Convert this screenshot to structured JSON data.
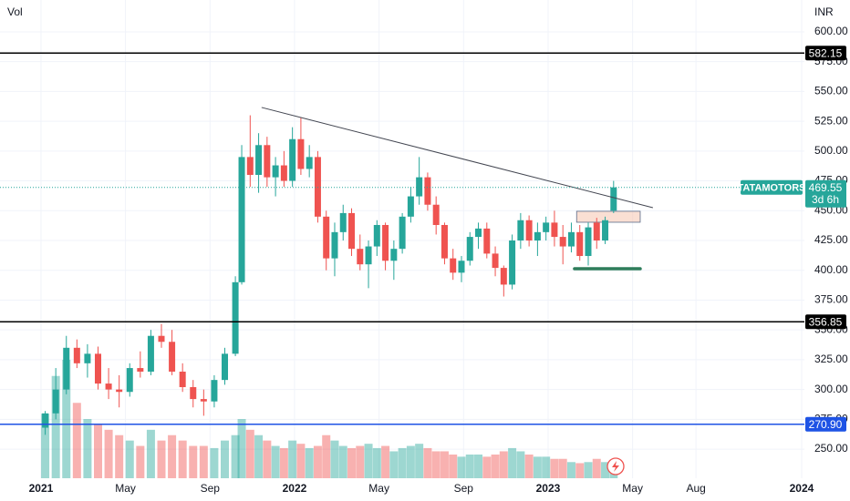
{
  "chart_data": {
    "type": "candlestick",
    "volume_label": "Vol",
    "currency": "INR",
    "symbol": "TATAMOTORS",
    "countdown": "3d 6h",
    "last_price": {
      "value": 469.55,
      "label": "469.55"
    },
    "up_color": "#26a69a",
    "down_color": "#ef5350",
    "grid": true,
    "xlim": [
      -1.94,
      36.13
    ],
    "ylim": [
      225.6,
      626.7
    ],
    "xticks": [
      {
        "value": 0,
        "label": "2021"
      },
      {
        "value": 4,
        "label": "May"
      },
      {
        "value": 8,
        "label": "Sep"
      },
      {
        "value": 12,
        "label": "2022"
      },
      {
        "value": 16,
        "label": "May"
      },
      {
        "value": 20,
        "label": "Sep"
      },
      {
        "value": 24,
        "label": "2023"
      },
      {
        "value": 28,
        "label": "May"
      },
      {
        "value": 31,
        "label": "Aug"
      },
      {
        "value": 36,
        "label": "2024"
      }
    ],
    "yticks": [
      {
        "value": 600,
        "label": "600.00"
      },
      {
        "value": 575,
        "label": "575.00"
      },
      {
        "value": 550,
        "label": "550.00"
      },
      {
        "value": 525,
        "label": "525.00"
      },
      {
        "value": 500,
        "label": "500.00"
      },
      {
        "value": 475,
        "label": "475.00"
      },
      {
        "value": 450,
        "label": "450.00"
      },
      {
        "value": 425,
        "label": "425.00"
      },
      {
        "value": 400,
        "label": "400.00"
      },
      {
        "value": 375,
        "label": "375.00"
      },
      {
        "value": 350,
        "label": "350.00"
      },
      {
        "value": 325,
        "label": "325.00"
      },
      {
        "value": 300,
        "label": "300.00"
      },
      {
        "value": 275,
        "label": "275.00"
      },
      {
        "value": 250,
        "label": "250.00"
      }
    ],
    "levels": [
      {
        "value": 582.15,
        "label": "582.15",
        "color": "#000000"
      },
      {
        "value": 356.85,
        "label": "356.85",
        "color": "#000000"
      },
      {
        "value": 270.9,
        "label": "270.90",
        "color": "#1e53e5"
      }
    ],
    "trendline": {
      "x": [
        10.44,
        28.96
      ],
      "y": [
        536.6,
        452.5
      ],
      "color": "#434651"
    },
    "support": {
      "x": [
        25.25,
        28.36
      ],
      "y": [
        401.3,
        401.3
      ],
      "color": "#2e7d5b"
    },
    "zone": {
      "x": [
        25.35,
        28.36
      ],
      "y": [
        449.5,
        440.3
      ],
      "color": "#f7c9b5"
    },
    "x": [
      0.2,
      0.7,
      1.2,
      1.7,
      2.2,
      2.7,
      3.2,
      3.7,
      4.2,
      4.7,
      5.2,
      5.7,
      6.2,
      6.7,
      7.2,
      7.7,
      8.2,
      8.7,
      9.2,
      9.5,
      9.9,
      10.3,
      10.7,
      11.1,
      11.5,
      11.9,
      12.3,
      12.7,
      13.1,
      13.5,
      13.9,
      14.3,
      14.7,
      15.1,
      15.5,
      15.9,
      16.3,
      16.7,
      17.1,
      17.5,
      17.9,
      18.3,
      18.7,
      19.1,
      19.5,
      19.9,
      20.3,
      20.7,
      21.1,
      21.5,
      21.9,
      22.3,
      22.7,
      23.1,
      23.5,
      23.9,
      24.3,
      24.7,
      25.1,
      25.5,
      25.9,
      26.3,
      26.7,
      27.1
    ],
    "open": [
      268,
      280,
      300,
      335,
      322,
      330,
      305,
      300,
      298,
      318,
      315,
      345,
      340,
      315,
      302,
      292,
      290,
      308,
      330,
      390,
      495,
      480,
      505,
      478,
      488,
      475,
      510,
      485,
      495,
      445,
      410,
      432,
      448,
      418,
      405,
      420,
      438,
      408,
      418,
      445,
      462,
      478,
      455,
      438,
      410,
      398,
      408,
      428,
      435,
      414,
      402,
      388,
      425,
      442,
      425,
      432,
      440,
      428,
      420,
      432,
      412,
      440,
      425,
      450
    ],
    "high": [
      282,
      318,
      345,
      342,
      338,
      336,
      318,
      312,
      322,
      332,
      350,
      355,
      350,
      322,
      308,
      300,
      312,
      335,
      395,
      505,
      530,
      515,
      512,
      495,
      500,
      520,
      528,
      505,
      500,
      450,
      440,
      455,
      452,
      430,
      425,
      442,
      440,
      425,
      448,
      470,
      495,
      482,
      462,
      440,
      418,
      412,
      432,
      440,
      440,
      420,
      404,
      430,
      448,
      446,
      440,
      445,
      450,
      438,
      440,
      438,
      440,
      444,
      445,
      475
    ],
    "low": [
      262,
      275,
      296,
      318,
      310,
      300,
      292,
      285,
      294,
      310,
      312,
      335,
      312,
      298,
      285,
      278,
      285,
      304,
      328,
      388,
      470,
      465,
      470,
      462,
      470,
      470,
      480,
      478,
      440,
      400,
      395,
      425,
      412,
      400,
      385,
      412,
      400,
      392,
      414,
      440,
      455,
      450,
      430,
      405,
      392,
      390,
      404,
      418,
      410,
      395,
      378,
      384,
      418,
      420,
      412,
      425,
      420,
      405,
      415,
      408,
      404,
      418,
      422,
      448
    ],
    "close": [
      280,
      300,
      335,
      322,
      330,
      305,
      300,
      298,
      318,
      315,
      345,
      340,
      315,
      302,
      292,
      290,
      308,
      330,
      390,
      495,
      480,
      505,
      478,
      488,
      475,
      510,
      485,
      495,
      445,
      410,
      432,
      448,
      418,
      405,
      420,
      438,
      408,
      418,
      445,
      462,
      478,
      455,
      438,
      410,
      398,
      408,
      428,
      435,
      414,
      402,
      388,
      425,
      442,
      425,
      432,
      440,
      428,
      420,
      432,
      412,
      436,
      425,
      442,
      469.55
    ],
    "volume": [
      60,
      95,
      110,
      70,
      55,
      50,
      45,
      40,
      35,
      30,
      45,
      35,
      40,
      35,
      30,
      30,
      28,
      35,
      40,
      55,
      45,
      40,
      35,
      30,
      28,
      35,
      32,
      28,
      30,
      40,
      35,
      30,
      28,
      30,
      32,
      28,
      30,
      25,
      28,
      30,
      32,
      28,
      25,
      25,
      22,
      20,
      22,
      22,
      20,
      22,
      25,
      28,
      25,
      22,
      20,
      20,
      18,
      18,
      15,
      14,
      15,
      18,
      15,
      16
    ]
  }
}
